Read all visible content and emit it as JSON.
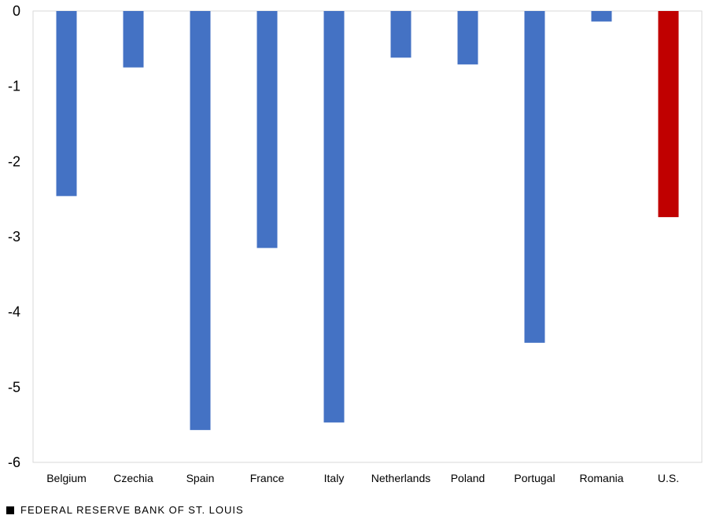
{
  "chart_data": {
    "type": "bar",
    "categories": [
      "Belgium",
      "Czechia",
      "Spain",
      "France",
      "Italy",
      "Netherlands",
      "Poland",
      "Portugal",
      "Romania",
      "U.S."
    ],
    "values": [
      -2.46,
      -0.75,
      -5.57,
      -3.15,
      -5.47,
      -0.62,
      -0.71,
      -4.41,
      -0.14,
      -2.74
    ],
    "colors": [
      "#4472C4",
      "#4472C4",
      "#4472C4",
      "#4472C4",
      "#4472C4",
      "#4472C4",
      "#4472C4",
      "#4472C4",
      "#4472C4",
      "#C00000"
    ],
    "ylim": [
      -6,
      0
    ],
    "yticks": [
      "0",
      "-1",
      "-2",
      "-3",
      "-4",
      "-5",
      "-6"
    ],
    "grid": false,
    "legend": "none"
  },
  "footer": {
    "source": "FEDERAL RESERVE BANK OF ST. LOUIS"
  }
}
